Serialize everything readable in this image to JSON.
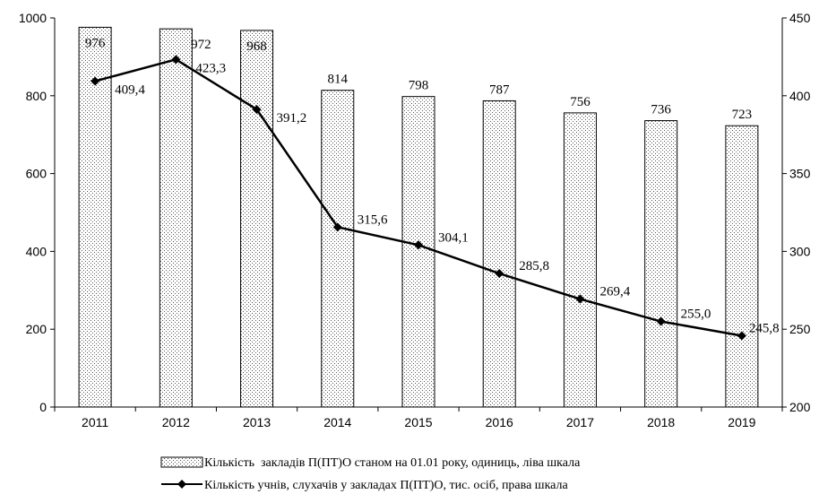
{
  "chart_data": {
    "type": "bar",
    "categories": [
      "2011",
      "2012",
      "2013",
      "2014",
      "2015",
      "2016",
      "2017",
      "2018",
      "2019"
    ],
    "series": [
      {
        "name": "Кількість  закладів П(ПТ)О станом на 01.01 року, одиниць, ліва шкала",
        "type": "bar",
        "axis": "left",
        "values": [
          976,
          972,
          968,
          814,
          798,
          787,
          756,
          736,
          723
        ],
        "labels": [
          "976",
          "972",
          "968",
          "814",
          "798",
          "787",
          "756",
          "736",
          "723"
        ]
      },
      {
        "name": "Кількість учнів, слухачів у закладах П(ПТ)О, тис. осіб, права шкала",
        "type": "line",
        "axis": "right",
        "values": [
          409.4,
          423.3,
          391.2,
          315.6,
          304.1,
          285.8,
          269.4,
          255.0,
          245.8
        ],
        "labels": [
          "409,4",
          "423,3",
          "391,2",
          "315,6",
          "304,1",
          "285,8",
          "269,4",
          "255,0",
          "245,8"
        ]
      }
    ],
    "y_left": {
      "min": 0,
      "max": 1000,
      "ticks": [
        "0",
        "200",
        "400",
        "600",
        "800",
        "1000"
      ]
    },
    "y_right": {
      "min": 200,
      "max": 450,
      "ticks": [
        "200",
        "250",
        "300",
        "350",
        "400",
        "450"
      ]
    },
    "grid": false,
    "legend_position": "bottom",
    "title": "",
    "xlabel": "",
    "ylabel": ""
  }
}
